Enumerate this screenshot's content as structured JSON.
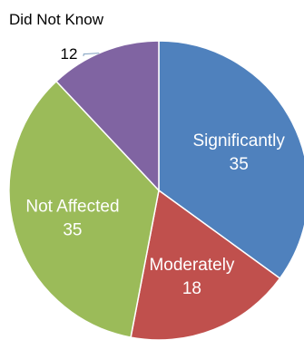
{
  "chart_data": {
    "type": "pie",
    "title": "",
    "slices": [
      {
        "label": "Significantly",
        "value": 35,
        "color": "#4f81bd",
        "label_color": "#ffffff"
      },
      {
        "label": "Moderately",
        "value": 18,
        "color": "#c0504d",
        "label_color": "#ffffff"
      },
      {
        "label": "Not Affected",
        "value": 35,
        "color": "#9bbb59",
        "label_color": "#ffffff"
      },
      {
        "label": "Did Not Know",
        "value": 12,
        "color": "#8064a2",
        "label_color": "#000000",
        "label_outside": true
      }
    ],
    "start_angle_deg": 0,
    "direction": "clockwise",
    "leader_line_color": "#7f9fbf"
  }
}
